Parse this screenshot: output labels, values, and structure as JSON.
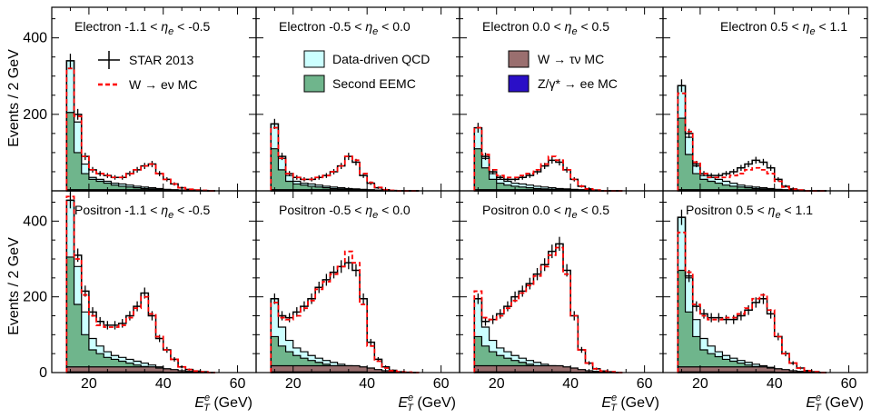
{
  "chart_data": {
    "type": "histogram",
    "x_axis": {
      "label_prefix": "E",
      "label_sup": "e",
      "label_sub": "T",
      "label_suffix": " (GeV)",
      "range": [
        10,
        65
      ],
      "ticks": [
        20,
        40,
        60
      ],
      "tick_labels": [
        "20",
        "40",
        "60"
      ]
    },
    "y_axis": {
      "label": "Events / 2 GeV",
      "top_row": {
        "range": [
          0,
          480
        ],
        "ticks": [
          200,
          400
        ],
        "tick_labels": [
          "200",
          "400"
        ]
      },
      "bottom_row": {
        "range": [
          0,
          480
        ],
        "ticks": [
          0,
          200,
          400
        ],
        "tick_labels": [
          "0",
          "200",
          "400"
        ]
      }
    },
    "bins": [
      14,
      16,
      18,
      20,
      22,
      24,
      26,
      28,
      30,
      32,
      34,
      36,
      38,
      40,
      42,
      44,
      46,
      48,
      50,
      52,
      54
    ],
    "legend": [
      {
        "label": "STAR 2013",
        "kind": "data"
      },
      {
        "label": "W → eν MC",
        "kind": "mc"
      },
      {
        "label": "Data-driven QCD",
        "kind": "qcd"
      },
      {
        "label": "Second EEMC",
        "kind": "eemc"
      },
      {
        "label": "W → τν MC",
        "kind": "tau"
      },
      {
        "label": "Z/γ* → ee MC",
        "kind": "zee"
      }
    ],
    "colors": {
      "qcd": "#ccffff",
      "eemc": "#6fb58c",
      "tau": "#9a6f6f",
      "zee": "#2a0fc7",
      "mc": "#ff0000",
      "data": "#000000"
    },
    "panels": [
      {
        "charge": "Electron",
        "eta_lo": "-1.1",
        "eta_hi": "-0.5",
        "data": [
          340,
          200,
          90,
          55,
          45,
          40,
          35,
          35,
          45,
          55,
          65,
          70,
          45,
          30,
          18,
          8,
          4,
          2,
          1,
          0
        ],
        "mc": [
          320,
          195,
          90,
          55,
          45,
          40,
          35,
          35,
          45,
          55,
          65,
          70,
          45,
          30,
          18,
          8,
          4,
          2,
          1,
          0
        ],
        "qcd": [
          340,
          180,
          70,
          35,
          30,
          25,
          20,
          18,
          15,
          12,
          10,
          8,
          6,
          4,
          3,
          2,
          1,
          0,
          0,
          0
        ],
        "eemc": [
          205,
          100,
          45,
          30,
          25,
          20,
          15,
          12,
          10,
          8,
          6,
          5,
          4,
          3,
          2,
          1,
          1,
          0,
          0,
          0
        ],
        "tau": [
          3,
          3,
          3,
          3,
          3,
          3,
          3,
          3,
          3,
          3,
          3,
          3,
          3,
          2,
          2,
          1,
          1,
          0,
          0,
          0
        ],
        "zee": [
          0,
          0,
          0,
          0,
          0,
          0,
          0,
          0,
          0,
          0,
          0,
          0,
          0,
          0,
          0,
          0,
          0,
          0,
          0,
          0
        ]
      },
      {
        "charge": "Electron",
        "eta_lo": "-0.5",
        "eta_hi": "0.0",
        "data": [
          175,
          90,
          45,
          35,
          30,
          30,
          35,
          40,
          50,
          65,
          90,
          75,
          40,
          20,
          8,
          3,
          1,
          0,
          0,
          0
        ],
        "mc": [
          165,
          85,
          45,
          35,
          30,
          30,
          35,
          40,
          50,
          65,
          90,
          80,
          45,
          22,
          9,
          3,
          1,
          0,
          0,
          0
        ],
        "qcd": [
          175,
          85,
          40,
          25,
          20,
          18,
          15,
          12,
          10,
          8,
          6,
          5,
          4,
          3,
          2,
          1,
          0,
          0,
          0,
          0
        ],
        "eemc": [
          110,
          55,
          25,
          18,
          15,
          12,
          10,
          8,
          6,
          5,
          4,
          3,
          2,
          2,
          1,
          0,
          0,
          0,
          0,
          0
        ],
        "tau": [
          3,
          3,
          3,
          3,
          3,
          3,
          3,
          3,
          3,
          3,
          3,
          3,
          3,
          2,
          2,
          1,
          1,
          0,
          0,
          0
        ],
        "zee": [
          0,
          0,
          0,
          0,
          0,
          0,
          0,
          0,
          0,
          0,
          0,
          0,
          0,
          0,
          0,
          0,
          0,
          0,
          0,
          0
        ]
      },
      {
        "charge": "Electron",
        "eta_lo": "0.0",
        "eta_hi": "0.5",
        "data": [
          165,
          90,
          50,
          35,
          30,
          30,
          35,
          40,
          50,
          65,
          80,
          75,
          55,
          30,
          12,
          5,
          2,
          0,
          0,
          0
        ],
        "mc": [
          165,
          95,
          55,
          40,
          35,
          35,
          40,
          45,
          55,
          70,
          90,
          80,
          55,
          30,
          12,
          5,
          2,
          0,
          0,
          0
        ],
        "qcd": [
          165,
          85,
          45,
          30,
          25,
          20,
          18,
          15,
          12,
          10,
          8,
          6,
          5,
          4,
          3,
          2,
          1,
          0,
          0,
          0
        ],
        "eemc": [
          110,
          60,
          30,
          20,
          15,
          12,
          10,
          8,
          6,
          5,
          4,
          3,
          2,
          2,
          1,
          0,
          0,
          0,
          0,
          0
        ],
        "tau": [
          3,
          3,
          3,
          3,
          3,
          3,
          3,
          3,
          3,
          3,
          3,
          3,
          3,
          2,
          2,
          1,
          1,
          0,
          0,
          0
        ],
        "zee": [
          0,
          0,
          0,
          0,
          0,
          0,
          0,
          0,
          0,
          0,
          0,
          0,
          0,
          0,
          0,
          0,
          0,
          0,
          0,
          0
        ]
      },
      {
        "charge": "Electron",
        "eta_lo": "0.5",
        "eta_hi": "1.1",
        "data": [
          275,
          150,
          70,
          45,
          40,
          40,
          45,
          50,
          60,
          70,
          80,
          75,
          60,
          30,
          12,
          5,
          2,
          0,
          0,
          0
        ],
        "mc": [
          255,
          155,
          75,
          45,
          35,
          35,
          35,
          40,
          45,
          55,
          60,
          55,
          45,
          25,
          10,
          4,
          2,
          0,
          0,
          0
        ],
        "qcd": [
          275,
          140,
          65,
          40,
          35,
          30,
          25,
          20,
          15,
          12,
          10,
          8,
          6,
          4,
          3,
          2,
          1,
          0,
          0,
          0
        ],
        "eemc": [
          190,
          95,
          45,
          30,
          25,
          20,
          15,
          12,
          10,
          8,
          6,
          5,
          4,
          3,
          2,
          1,
          1,
          0,
          0,
          0
        ],
        "tau": [
          3,
          3,
          3,
          3,
          3,
          3,
          3,
          3,
          3,
          3,
          3,
          3,
          3,
          2,
          2,
          1,
          1,
          0,
          0,
          0
        ],
        "zee": [
          0,
          0,
          0,
          0,
          0,
          0,
          0,
          0,
          0,
          0,
          0,
          0,
          0,
          0,
          0,
          0,
          0,
          0,
          0,
          0
        ]
      },
      {
        "charge": "Positron",
        "eta_lo": "-1.1",
        "eta_hi": "-0.5",
        "data": [
          455,
          310,
          215,
          160,
          135,
          125,
          125,
          130,
          150,
          175,
          210,
          150,
          90,
          60,
          35,
          15,
          8,
          4,
          2,
          0
        ],
        "mc": [
          465,
          300,
          205,
          150,
          125,
          120,
          120,
          125,
          145,
          170,
          200,
          155,
          95,
          60,
          35,
          15,
          8,
          4,
          2,
          0
        ],
        "qcd": [
          455,
          280,
          160,
          90,
          70,
          55,
          45,
          40,
          35,
          30,
          25,
          20,
          15,
          10,
          6,
          4,
          2,
          1,
          0,
          0
        ],
        "eemc": [
          305,
          180,
          100,
          60,
          50,
          40,
          35,
          30,
          25,
          20,
          16,
          12,
          10,
          8,
          5,
          3,
          2,
          1,
          0,
          0
        ],
        "tau": [
          15,
          15,
          15,
          15,
          15,
          15,
          15,
          15,
          15,
          15,
          15,
          15,
          12,
          10,
          8,
          5,
          3,
          2,
          1,
          0
        ],
        "zee": [
          2,
          2,
          2,
          2,
          2,
          2,
          2,
          2,
          2,
          2,
          2,
          2,
          2,
          1,
          1,
          1,
          0,
          0,
          0,
          0
        ]
      },
      {
        "charge": "Positron",
        "eta_lo": "-0.5",
        "eta_hi": "0.0",
        "data": [
          195,
          150,
          145,
          160,
          175,
          195,
          225,
          245,
          265,
          280,
          290,
          270,
          195,
          80,
          35,
          15,
          6,
          2,
          1,
          0
        ],
        "mc": [
          185,
          145,
          140,
          150,
          170,
          190,
          220,
          240,
          260,
          280,
          320,
          290,
          180,
          70,
          30,
          12,
          5,
          2,
          1,
          0
        ],
        "qcd": [
          195,
          120,
          85,
          65,
          55,
          45,
          38,
          32,
          27,
          22,
          18,
          14,
          10,
          7,
          5,
          3,
          2,
          1,
          0,
          0
        ],
        "eemc": [
          95,
          70,
          55,
          45,
          38,
          32,
          27,
          22,
          18,
          15,
          12,
          10,
          8,
          6,
          4,
          3,
          2,
          1,
          0,
          0
        ],
        "tau": [
          18,
          18,
          18,
          18,
          18,
          18,
          18,
          18,
          18,
          18,
          18,
          18,
          15,
          12,
          8,
          5,
          3,
          2,
          1,
          0
        ],
        "zee": [
          2,
          2,
          2,
          2,
          2,
          2,
          2,
          2,
          2,
          2,
          2,
          2,
          2,
          1,
          1,
          1,
          0,
          0,
          0,
          0
        ]
      },
      {
        "charge": "Positron",
        "eta_lo": "0.0",
        "eta_hi": "0.5",
        "data": [
          195,
          135,
          140,
          155,
          175,
          200,
          215,
          235,
          260,
          285,
          320,
          340,
          270,
          150,
          60,
          25,
          10,
          4,
          2,
          0
        ],
        "mc": [
          215,
          145,
          140,
          150,
          170,
          190,
          210,
          230,
          255,
          280,
          310,
          330,
          260,
          150,
          60,
          25,
          10,
          4,
          2,
          0
        ],
        "qcd": [
          195,
          120,
          85,
          65,
          55,
          45,
          38,
          32,
          27,
          22,
          18,
          14,
          10,
          7,
          5,
          3,
          2,
          1,
          0,
          0
        ],
        "eemc": [
          95,
          70,
          55,
          45,
          38,
          32,
          27,
          22,
          18,
          15,
          12,
          10,
          8,
          6,
          4,
          3,
          2,
          1,
          0,
          0
        ],
        "tau": [
          18,
          18,
          18,
          18,
          18,
          18,
          18,
          18,
          18,
          18,
          18,
          18,
          15,
          12,
          8,
          5,
          3,
          2,
          1,
          0
        ],
        "zee": [
          2,
          2,
          2,
          2,
          2,
          2,
          2,
          2,
          2,
          2,
          2,
          2,
          2,
          1,
          1,
          1,
          0,
          0,
          0,
          0
        ]
      },
      {
        "charge": "Positron",
        "eta_lo": "0.5",
        "eta_hi": "1.1",
        "data": [
          410,
          255,
          175,
          155,
          145,
          145,
          140,
          140,
          150,
          165,
          185,
          195,
          155,
          95,
          50,
          25,
          12,
          5,
          2,
          0
        ],
        "mc": [
          370,
          265,
          180,
          150,
          140,
          140,
          145,
          145,
          155,
          170,
          195,
          205,
          165,
          95,
          50,
          25,
          12,
          5,
          2,
          0
        ],
        "qcd": [
          410,
          250,
          140,
          90,
          70,
          55,
          45,
          38,
          32,
          27,
          22,
          18,
          14,
          10,
          7,
          4,
          2,
          1,
          0,
          0
        ],
        "eemc": [
          270,
          160,
          95,
          60,
          50,
          42,
          35,
          30,
          25,
          20,
          16,
          12,
          10,
          8,
          5,
          3,
          2,
          1,
          0,
          0
        ],
        "tau": [
          15,
          15,
          15,
          15,
          15,
          15,
          15,
          15,
          15,
          15,
          15,
          15,
          12,
          10,
          8,
          5,
          3,
          2,
          1,
          0
        ],
        "zee": [
          2,
          2,
          2,
          2,
          2,
          2,
          2,
          2,
          2,
          2,
          2,
          2,
          2,
          1,
          1,
          1,
          0,
          0,
          0,
          0
        ]
      }
    ]
  }
}
